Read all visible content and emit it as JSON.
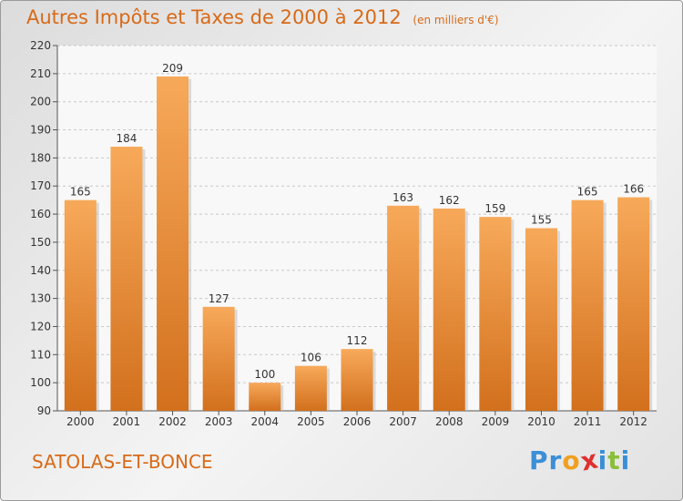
{
  "header": {
    "title": "Autres Impôts et Taxes de 2000 à 2012",
    "subtitle": "(en milliers d'€)"
  },
  "footer": {
    "town": "SATOLAS-ET-BONCE",
    "logo": [
      "P",
      "r",
      "o",
      "x",
      "i",
      "t",
      "i"
    ]
  },
  "colors": {
    "accent": "#d86a18",
    "bar_top": "#f7a95a",
    "bar_bottom": "#d2701d",
    "logo": [
      "#3a8fd6",
      "#3a8fd6",
      "#f0a020",
      "#e03030",
      "#3a8fd6",
      "#8abf3a",
      "#3a8fd6"
    ]
  },
  "chart_data": {
    "type": "bar",
    "title": "Autres Impôts et Taxes de 2000 à 2012",
    "subtitle": "(en milliers d'€)",
    "categories": [
      "2000",
      "2001",
      "2002",
      "2003",
      "2004",
      "2005",
      "2006",
      "2007",
      "2008",
      "2009",
      "2010",
      "2011",
      "2012"
    ],
    "values": [
      165,
      184,
      209,
      127,
      100,
      106,
      112,
      163,
      162,
      159,
      155,
      165,
      166
    ],
    "ylim": [
      90,
      220
    ],
    "yticks": [
      90,
      100,
      110,
      120,
      130,
      140,
      150,
      160,
      170,
      180,
      190,
      200,
      210,
      220
    ],
    "grid": true,
    "legend": "none"
  }
}
